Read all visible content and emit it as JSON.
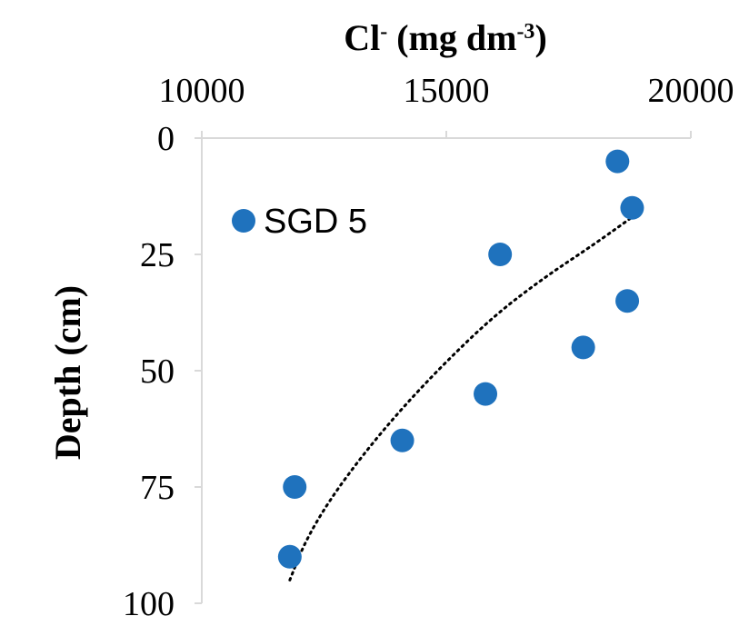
{
  "chart_data": {
    "type": "scatter",
    "title": "",
    "xlabel": "Cl- (mg dm-3)",
    "xlabel_parts": {
      "base1": "Cl",
      "sup1": "-",
      "mid": " (mg dm",
      "sup2": "-3",
      "end": ")"
    },
    "ylabel": "Depth (cm)",
    "x_axis_position": "top",
    "y_axis_inverted": true,
    "xlim": [
      10000,
      20000
    ],
    "ylim": [
      0,
      100
    ],
    "x_ticks": [
      10000,
      15000,
      20000
    ],
    "y_ticks": [
      0,
      25,
      50,
      75,
      100
    ],
    "grid": false,
    "legend_position": "top-left",
    "series": [
      {
        "name": "SGD 5",
        "color": "#1f72bd",
        "marker": "circle",
        "points": [
          {
            "x": 18500,
            "y": 5
          },
          {
            "x": 18800,
            "y": 15
          },
          {
            "x": 16100,
            "y": 25
          },
          {
            "x": 18700,
            "y": 35
          },
          {
            "x": 17800,
            "y": 45
          },
          {
            "x": 15800,
            "y": 55
          },
          {
            "x": 14100,
            "y": 65
          },
          {
            "x": 11900,
            "y": 75
          },
          {
            "x": 11800,
            "y": 90
          }
        ]
      }
    ],
    "trendline": {
      "style": "dotted",
      "color": "#000000",
      "points": [
        {
          "x": 11800,
          "y": 95
        },
        {
          "x": 12100,
          "y": 87
        },
        {
          "x": 12600,
          "y": 78
        },
        {
          "x": 13300,
          "y": 68
        },
        {
          "x": 14100,
          "y": 58
        },
        {
          "x": 15000,
          "y": 48
        },
        {
          "x": 16000,
          "y": 38
        },
        {
          "x": 17000,
          "y": 30
        },
        {
          "x": 18000,
          "y": 23
        },
        {
          "x": 18800,
          "y": 17
        }
      ]
    }
  }
}
